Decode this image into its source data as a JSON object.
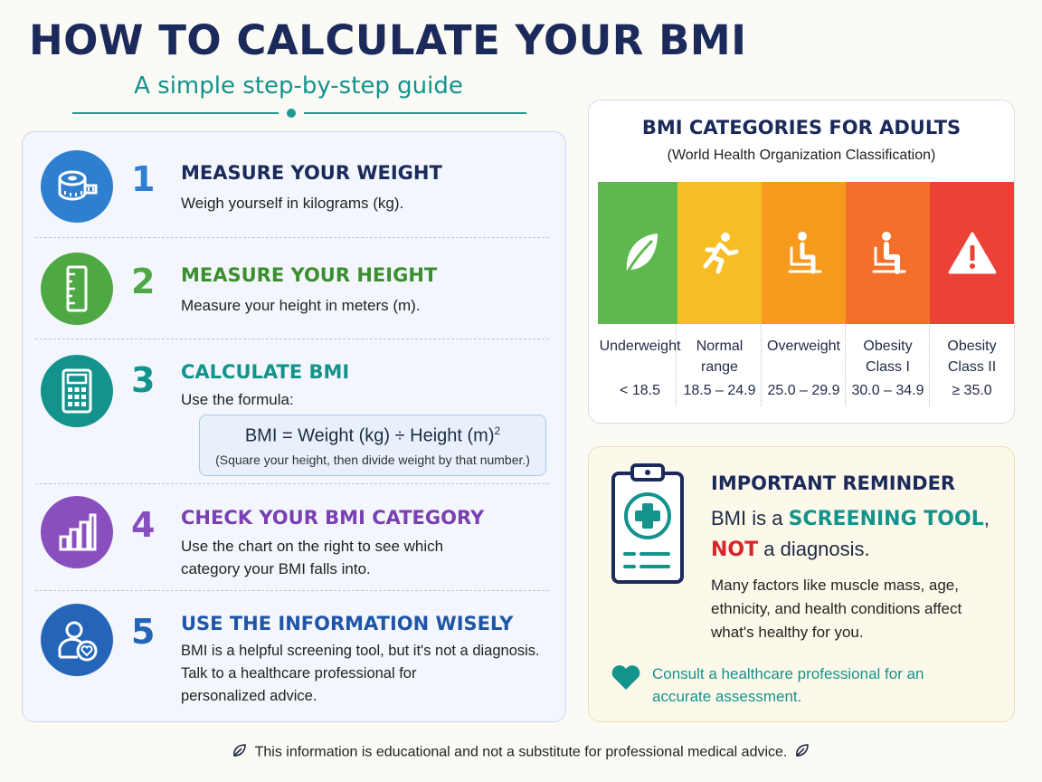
{
  "header": {
    "title": "HOW TO CALCULATE YOUR BMI",
    "subtitle": "A simple step-by-step guide"
  },
  "steps": [
    {
      "number": "1",
      "title": "MEASURE YOUR WEIGHT",
      "description": "Weigh yourself in kilograms (kg).",
      "icon": "measuring-tape-icon",
      "color": "#2f7fd1"
    },
    {
      "number": "2",
      "title": "MEASURE YOUR HEIGHT",
      "description": "Measure your height in meters (m).",
      "icon": "ruler-icon",
      "color": "#4ea843"
    },
    {
      "number": "3",
      "title": "CALCULATE BMI",
      "description": "Use the formula:",
      "icon": "calculator-icon",
      "color": "#13938c"
    },
    {
      "number": "4",
      "title": "CHECK YOUR BMI CATEGORY",
      "description_lines": [
        "Use the chart on the right to see which",
        "category your BMI falls into."
      ],
      "icon": "bar-chart-icon",
      "color": "#8a4fbf"
    },
    {
      "number": "5",
      "title": "USE THE INFORMATION WISELY",
      "description_lines": [
        "BMI is a helpful screening tool, but it's not a diagnosis.",
        "Talk to a healthcare professional for",
        "personalized advice."
      ],
      "icon": "person-heart-icon",
      "color": "#2465b8"
    }
  ],
  "formula": {
    "main": "BMI = Weight (kg) ÷ Height (m)",
    "exponent": "2",
    "note": "(Square your height, then divide weight by that number.)"
  },
  "categories": {
    "title": "BMI CATEGORIES FOR ADULTS",
    "subtitle": "(World Health Organization Classification)",
    "items": [
      {
        "label_lines": [
          "Underweight"
        ],
        "range": "< 18.5",
        "color": "#5db84d",
        "icon": "leaf-icon"
      },
      {
        "label_lines": [
          "Normal",
          "range"
        ],
        "range": "18.5 – 24.9",
        "color": "#f6bd25",
        "icon": "running-person-icon"
      },
      {
        "label_lines": [
          "Overweight"
        ],
        "range": "25.0 – 29.9",
        "color": "#f79a1e",
        "icon": "seated-person-icon"
      },
      {
        "label_lines": [
          "Obesity",
          "Class I"
        ],
        "range": "30.0 – 34.9",
        "color": "#f4702a",
        "icon": "seated-person-icon"
      },
      {
        "label_lines": [
          "Obesity",
          "Class II"
        ],
        "range": "≥ 35.0",
        "color": "#ec4136",
        "icon": "warning-icon"
      }
    ]
  },
  "reminder": {
    "title": "IMPORTANT REMINDER",
    "line1_prefix": "BMI is a ",
    "line1_highlight": "SCREENING TOOL",
    "line1_suffix": ",",
    "line2_highlight": "NOT",
    "line2_suffix": " a diagnosis.",
    "body_lines": [
      "Many factors like muscle mass, age,",
      "ethnicity, and health conditions affect",
      "what's healthy for you."
    ],
    "consult_lines": [
      "Consult a healthcare professional for an",
      "accurate assessment."
    ]
  },
  "footer": {
    "text": "This information is educational and not a substitute for professional medical advice."
  }
}
